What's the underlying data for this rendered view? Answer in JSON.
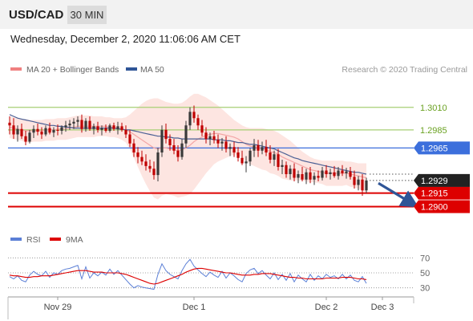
{
  "header": {
    "symbol": "USD/CAD",
    "timeframe": "30 MIN"
  },
  "datetime": "Wednesday, December 2, 2020 11:06:06 AM CET",
  "legend": {
    "ma20_bb": {
      "label": "MA 20 + Bollinger Bands",
      "color": "#f08080"
    },
    "ma50": {
      "label": "MA 50",
      "color": "#2f5597"
    }
  },
  "copyright": "Research © 2020 Trading Central",
  "colors": {
    "up": "#3a3a3a",
    "down": "#c00000",
    "bb": "#fde0dc",
    "ma20": "#f3a6a6",
    "ma50": "#4a5f94",
    "resistance": "#a7cf74",
    "pivot": "#3c6fdc",
    "support": "#dd0000",
    "current": "#222222"
  },
  "chart_data": {
    "type": "candlestick",
    "price_ylim": [
      1.288,
      1.304
    ],
    "x_ticks": [
      {
        "label": "Nov 29",
        "index": 12
      },
      {
        "label": "Dec 1",
        "index": 46
      },
      {
        "label": "Dec 2",
        "index": 79
      },
      {
        "label": "Dec 3",
        "index": 93
      }
    ],
    "levels": [
      {
        "label": "1.3010",
        "value": 1.301,
        "kind": "resistance"
      },
      {
        "label": "1.2985",
        "value": 1.2985,
        "kind": "resistance"
      },
      {
        "label": "1.2965",
        "value": 1.2965,
        "kind": "pivot"
      },
      {
        "label": "1.2915",
        "value": 1.2915,
        "kind": "support"
      },
      {
        "label": "1.2900",
        "value": 1.29,
        "kind": "support"
      }
    ],
    "current_price": {
      "label": "1.2929",
      "value": 1.2929
    },
    "forecast_arrow": {
      "from_index": 92,
      "from_value": 1.2926,
      "to_index": 101,
      "to_value": 1.2902
    },
    "ohlc": [
      [
        1.2993,
        1.3,
        1.298,
        1.299
      ],
      [
        1.299,
        1.2998,
        1.2975,
        1.298
      ],
      [
        1.298,
        1.299,
        1.2972,
        1.2986
      ],
      [
        1.2986,
        1.2992,
        1.2975,
        1.2978
      ],
      [
        1.2978,
        1.2984,
        1.2968,
        1.2972
      ],
      [
        1.2972,
        1.2985,
        1.297,
        1.2982
      ],
      [
        1.2982,
        1.299,
        1.2976,
        1.2986
      ],
      [
        1.2986,
        1.2992,
        1.2979,
        1.2983
      ],
      [
        1.2983,
        1.2988,
        1.2975,
        1.298
      ],
      [
        1.298,
        1.299,
        1.2978,
        1.2987
      ],
      [
        1.2987,
        1.2993,
        1.298,
        1.2982
      ],
      [
        1.2982,
        1.2988,
        1.2977,
        1.2985
      ],
      [
        1.2985,
        1.2991,
        1.2979,
        1.2984
      ],
      [
        1.2984,
        1.299,
        1.298,
        1.2988
      ],
      [
        1.2988,
        1.2995,
        1.2983,
        1.299
      ],
      [
        1.299,
        1.2996,
        1.2985,
        1.2992
      ],
      [
        1.2992,
        1.2998,
        1.2986,
        1.2994
      ],
      [
        1.2994,
        1.3,
        1.2988,
        1.2996
      ],
      [
        1.2996,
        1.3002,
        1.2982,
        1.2986
      ],
      [
        1.2986,
        1.2998,
        1.2983,
        1.2995
      ],
      [
        1.2995,
        1.3,
        1.2984,
        1.2986
      ],
      [
        1.2986,
        1.2992,
        1.298,
        1.2989
      ],
      [
        1.2989,
        1.2994,
        1.2982,
        1.2985
      ],
      [
        1.2985,
        1.299,
        1.2979,
        1.2987
      ],
      [
        1.2987,
        1.2991,
        1.2982,
        1.2984
      ],
      [
        1.2984,
        1.2992,
        1.2982,
        1.299
      ],
      [
        1.299,
        1.2993,
        1.2984,
        1.2986
      ],
      [
        1.2986,
        1.2994,
        1.298,
        1.2989
      ],
      [
        1.2989,
        1.2993,
        1.2983,
        1.2985
      ],
      [
        1.2985,
        1.299,
        1.2976,
        1.298
      ],
      [
        1.298,
        1.2985,
        1.2966,
        1.297
      ],
      [
        1.297,
        1.2975,
        1.2955,
        1.296
      ],
      [
        1.296,
        1.2966,
        1.2948,
        1.2955
      ],
      [
        1.2955,
        1.2962,
        1.2946,
        1.295
      ],
      [
        1.295,
        1.2958,
        1.294,
        1.2945
      ],
      [
        1.2945,
        1.2952,
        1.2938,
        1.2942
      ],
      [
        1.2942,
        1.295,
        1.293,
        1.2935
      ],
      [
        1.2935,
        1.2965,
        1.2928,
        1.296
      ],
      [
        1.296,
        1.299,
        1.2955,
        1.2985
      ],
      [
        1.2985,
        1.2992,
        1.297,
        1.2975
      ],
      [
        1.2975,
        1.298,
        1.2962,
        1.2968
      ],
      [
        1.2968,
        1.2975,
        1.2958,
        1.2962
      ],
      [
        1.2962,
        1.2968,
        1.295,
        1.2955
      ],
      [
        1.2955,
        1.2975,
        1.2952,
        1.297
      ],
      [
        1.297,
        1.2995,
        1.2965,
        1.299
      ],
      [
        1.299,
        1.301,
        1.2985,
        1.3005
      ],
      [
        1.3005,
        1.3012,
        1.2993,
        1.2998
      ],
      [
        1.2998,
        1.3002,
        1.2985,
        1.299
      ],
      [
        1.299,
        1.2996,
        1.2978,
        1.2982
      ],
      [
        1.2982,
        1.2988,
        1.297,
        1.2975
      ],
      [
        1.2975,
        1.2982,
        1.2968,
        1.2978
      ],
      [
        1.2978,
        1.2984,
        1.297,
        1.2974
      ],
      [
        1.2974,
        1.298,
        1.2965,
        1.297
      ],
      [
        1.297,
        1.2976,
        1.2962,
        1.2972
      ],
      [
        1.2972,
        1.2978,
        1.296,
        1.2964
      ],
      [
        1.2964,
        1.297,
        1.2956,
        1.2966
      ],
      [
        1.2966,
        1.2972,
        1.2955,
        1.296
      ],
      [
        1.296,
        1.2966,
        1.295,
        1.2954
      ],
      [
        1.2954,
        1.2962,
        1.2946,
        1.2948
      ],
      [
        1.2948,
        1.2956,
        1.2938,
        1.295
      ],
      [
        1.295,
        1.2965,
        1.2945,
        1.2962
      ],
      [
        1.2962,
        1.2975,
        1.2955,
        1.2968
      ],
      [
        1.2968,
        1.2974,
        1.2955,
        1.2962
      ],
      [
        1.2962,
        1.2972,
        1.2958,
        1.2966
      ],
      [
        1.2966,
        1.2974,
        1.2956,
        1.296
      ],
      [
        1.296,
        1.2968,
        1.2948,
        1.2952
      ],
      [
        1.2952,
        1.2962,
        1.2945,
        1.2958
      ],
      [
        1.2958,
        1.2964,
        1.294,
        1.2944
      ],
      [
        1.2944,
        1.2952,
        1.2936,
        1.2946
      ],
      [
        1.2946,
        1.295,
        1.2932,
        1.2936
      ],
      [
        1.2936,
        1.2946,
        1.293,
        1.2942
      ],
      [
        1.2942,
        1.2948,
        1.2928,
        1.2932
      ],
      [
        1.2932,
        1.294,
        1.2926,
        1.2936
      ],
      [
        1.2936,
        1.2944,
        1.2928,
        1.293
      ],
      [
        1.293,
        1.2942,
        1.2925,
        1.2938
      ],
      [
        1.2938,
        1.2944,
        1.2926,
        1.293
      ],
      [
        1.293,
        1.2938,
        1.2924,
        1.2934
      ],
      [
        1.2934,
        1.294,
        1.2928,
        1.2932
      ],
      [
        1.2932,
        1.2944,
        1.2929,
        1.294
      ],
      [
        1.294,
        1.2946,
        1.2932,
        1.2936
      ],
      [
        1.2936,
        1.2942,
        1.293,
        1.2938
      ],
      [
        1.2938,
        1.2945,
        1.2932,
        1.2934
      ],
      [
        1.2934,
        1.2944,
        1.293,
        1.294
      ],
      [
        1.294,
        1.2946,
        1.2934,
        1.2937
      ],
      [
        1.2937,
        1.2943,
        1.2931,
        1.2939
      ],
      [
        1.2939,
        1.2944,
        1.293,
        1.2933
      ],
      [
        1.2933,
        1.294,
        1.292,
        1.2924
      ],
      [
        1.2924,
        1.2934,
        1.2918,
        1.293
      ],
      [
        1.293,
        1.2936,
        1.2912,
        1.2918
      ],
      [
        1.2918,
        1.2932,
        1.2915,
        1.2929
      ]
    ],
    "ma20": [
      1.2988,
      1.2987,
      1.2986,
      1.2985,
      1.2984,
      1.2984,
      1.2984,
      1.2984,
      1.2984,
      1.2985,
      1.2985,
      1.2985,
      1.2986,
      1.2986,
      1.2986,
      1.2987,
      1.2988,
      1.2989,
      1.2989,
      1.2989,
      1.2989,
      1.2989,
      1.2989,
      1.2989,
      1.2989,
      1.2988,
      1.2988,
      1.2987,
      1.2986,
      1.2985,
      1.2983,
      1.298,
      1.2977,
      1.2974,
      1.2971,
      1.2968,
      1.2965,
      1.2964,
      1.2965,
      1.2965,
      1.2964,
      1.2963,
      1.2962,
      1.2963,
      1.2965,
      1.2968,
      1.2972,
      1.2975,
      1.2977,
      1.2979,
      1.298,
      1.2981,
      1.2981,
      1.298,
      1.2979,
      1.2978,
      1.2977,
      1.2975,
      1.2972,
      1.2969,
      1.2967,
      1.2966,
      1.2965,
      1.2964,
      1.2963,
      1.2961,
      1.296,
      1.2958,
      1.2955,
      1.2953,
      1.2951,
      1.2949,
      1.2947,
      1.2945,
      1.2943,
      1.2941,
      1.294,
      1.2939,
      1.2938,
      1.2937,
      1.2937,
      1.2937,
      1.2937,
      1.2937,
      1.2937,
      1.2936,
      1.2935,
      1.2934,
      1.2933,
      1.2932
    ],
    "bb_upper": [
      1.3,
      1.2999,
      1.2998,
      1.2997,
      1.2997,
      1.2996,
      1.2996,
      1.2996,
      1.2996,
      1.2997,
      1.2997,
      1.2997,
      1.2998,
      1.2998,
      1.2998,
      1.2999,
      1.3,
      1.3001,
      1.3001,
      1.3001,
      1.3001,
      1.3,
      1.3,
      1.3,
      1.2999,
      1.2999,
      1.2998,
      1.2998,
      1.2998,
      1.2999,
      1.3002,
      1.3006,
      1.301,
      1.3014,
      1.3017,
      1.3019,
      1.302,
      1.302,
      1.3018,
      1.3016,
      1.3015,
      1.3014,
      1.3014,
      1.3015,
      1.3018,
      1.3022,
      1.3025,
      1.3025,
      1.3023,
      1.3021,
      1.3018,
      1.3015,
      1.3012,
      1.3008,
      1.3004,
      1.3,
      1.2996,
      1.2993,
      1.299,
      1.2988,
      1.2987,
      1.2987,
      1.2987,
      1.2987,
      1.2986,
      1.2985,
      1.2984,
      1.2982,
      1.2979,
      1.2976,
      1.2973,
      1.2969,
      1.2965,
      1.2961,
      1.2958,
      1.2955,
      1.2953,
      1.2952,
      1.2951,
      1.2951,
      1.2951,
      1.2951,
      1.2951,
      1.2951,
      1.295,
      1.295,
      1.2949,
      1.2948,
      1.2948,
      1.2948
    ],
    "bb_lower": [
      1.2976,
      1.2975,
      1.2974,
      1.2973,
      1.2971,
      1.2971,
      1.2972,
      1.2972,
      1.2972,
      1.2973,
      1.2973,
      1.2973,
      1.2974,
      1.2974,
      1.2974,
      1.2975,
      1.2976,
      1.2977,
      1.2977,
      1.2977,
      1.2977,
      1.2977,
      1.2978,
      1.2978,
      1.2978,
      1.2977,
      1.2977,
      1.2976,
      1.2974,
      1.2971,
      1.2964,
      1.2954,
      1.2944,
      1.2934,
      1.2925,
      1.2917,
      1.291,
      1.2908,
      1.2912,
      1.2914,
      1.2913,
      1.2912,
      1.291,
      1.2911,
      1.2912,
      1.2914,
      1.2919,
      1.2925,
      1.2931,
      1.2937,
      1.2942,
      1.2947,
      1.295,
      1.2952,
      1.2954,
      1.2956,
      1.2958,
      1.2957,
      1.2954,
      1.295,
      1.2947,
      1.2945,
      1.2943,
      1.2941,
      1.294,
      1.2937,
      1.2936,
      1.2934,
      1.2931,
      1.293,
      1.2929,
      1.2929,
      1.2929,
      1.2929,
      1.2928,
      1.2927,
      1.2927,
      1.2926,
      1.2925,
      1.2923,
      1.2923,
      1.2923,
      1.2923,
      1.2923,
      1.2924,
      1.2922,
      1.2921,
      1.292,
      1.2918,
      1.2916
    ],
    "ma50": [
      1.3002,
      1.3,
      1.2998,
      1.2997,
      1.2996,
      1.2995,
      1.2994,
      1.2993,
      1.2992,
      1.2991,
      1.299,
      1.299,
      1.2989,
      1.2989,
      1.2988,
      1.2988,
      1.2987,
      1.2987,
      1.2987,
      1.2987,
      1.2987,
      1.2987,
      1.2987,
      1.2987,
      1.2987,
      1.2987,
      1.2987,
      1.2986,
      1.2986,
      1.2985,
      1.2985,
      1.2984,
      1.2983,
      1.2982,
      1.2981,
      1.298,
      1.2979,
      1.2978,
      1.2978,
      1.2977,
      1.2977,
      1.2976,
      1.2976,
      1.2975,
      1.2975,
      1.2975,
      1.2975,
      1.2975,
      1.2975,
      1.2975,
      1.2975,
      1.2974,
      1.2974,
      1.2974,
      1.2973,
      1.2973,
      1.2972,
      1.2971,
      1.2971,
      1.297,
      1.2969,
      1.2969,
      1.2968,
      1.2967,
      1.2966,
      1.2965,
      1.2964,
      1.2962,
      1.296,
      1.2958,
      1.2956,
      1.2954,
      1.2953,
      1.2951,
      1.295,
      1.2949,
      1.2948,
      1.2947,
      1.2946,
      1.2945,
      1.2944,
      1.2943,
      1.2942,
      1.2941,
      1.294,
      1.2939,
      1.2938,
      1.2938,
      1.2937,
      1.2936
    ],
    "rsi_panel": {
      "legend": [
        {
          "label": "RSI",
          "color": "#5b7fd6"
        },
        {
          "label": "9MA",
          "color": "#dd0000"
        }
      ],
      "ylim": [
        20,
        80
      ],
      "ticks": [
        {
          "label": "70",
          "value": 70
        },
        {
          "label": "50",
          "value": 50
        },
        {
          "label": "30",
          "value": 30
        }
      ],
      "rsi": [
        45,
        42,
        46,
        40,
        38,
        47,
        52,
        48,
        46,
        52,
        44,
        50,
        48,
        53,
        55,
        56,
        58,
        60,
        42,
        58,
        43,
        50,
        46,
        51,
        47,
        55,
        48,
        53,
        47,
        41,
        35,
        30,
        33,
        31,
        30,
        29,
        28,
        48,
        62,
        53,
        48,
        45,
        42,
        53,
        62,
        68,
        59,
        54,
        49,
        45,
        51,
        47,
        44,
        52,
        43,
        50,
        46,
        41,
        38,
        49,
        54,
        56,
        49,
        53,
        47,
        42,
        50,
        41,
        48,
        40,
        49,
        38,
        47,
        42,
        38,
        48,
        40,
        46,
        42,
        48,
        44,
        46,
        42,
        48,
        42,
        47,
        40,
        38,
        45,
        36
      ],
      "ma9": [
        47,
        46,
        46,
        45,
        44,
        44,
        45,
        45,
        46,
        46,
        46,
        47,
        48,
        49,
        50,
        51,
        52,
        53,
        53,
        53,
        52,
        51,
        51,
        51,
        50,
        50,
        50,
        50,
        49,
        48,
        46,
        44,
        42,
        40,
        38,
        36,
        35,
        36,
        38,
        40,
        42,
        44,
        46,
        48,
        51,
        53,
        55,
        56,
        56,
        55,
        54,
        53,
        52,
        51,
        50,
        50,
        49,
        48,
        47,
        47,
        47,
        48,
        48,
        49,
        49,
        49,
        48,
        47,
        46,
        45,
        44,
        44,
        43,
        43,
        42,
        42,
        42,
        42,
        42,
        43,
        43,
        43,
        43,
        44,
        44,
        44,
        43,
        42,
        42,
        41
      ]
    }
  }
}
